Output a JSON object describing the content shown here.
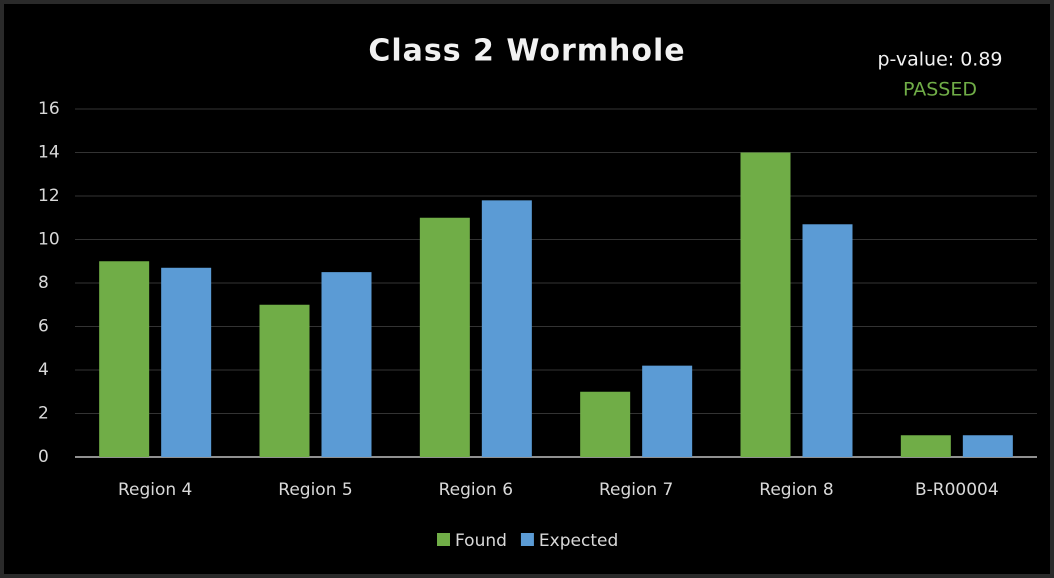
{
  "chart_data": {
    "type": "bar",
    "title": "Class 2 Wormhole",
    "annotations": [
      "p-value: 0.89",
      "PASSED"
    ],
    "categories": [
      "Region 4",
      "Region 5",
      "Region 6",
      "Region 7",
      "Region 8",
      "B-R00004"
    ],
    "series": [
      {
        "name": "Found",
        "color": "#70ad47",
        "values": [
          9,
          7,
          11,
          3,
          14,
          1
        ]
      },
      {
        "name": "Expected",
        "color": "#5b9bd5",
        "values": [
          8.7,
          8.5,
          11.8,
          4.2,
          10.7,
          1.0
        ]
      }
    ],
    "ylim": [
      0,
      16
    ],
    "yticks": [
      0,
      2,
      4,
      6,
      8,
      10,
      12,
      14,
      16
    ],
    "grid": true,
    "legend": "bottom"
  }
}
